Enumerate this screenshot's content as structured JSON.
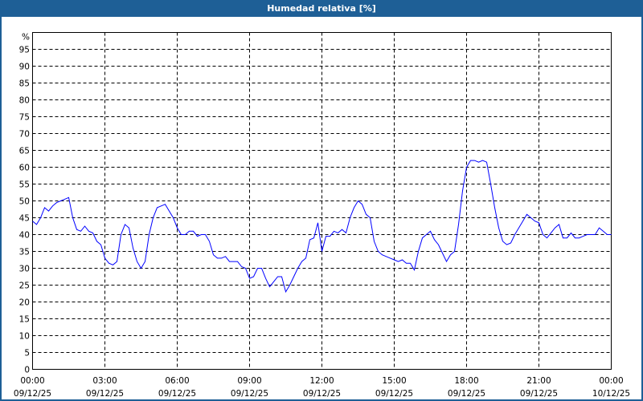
{
  "window": {
    "title": "Humedad relativa [%]"
  },
  "colors": {
    "header": "#1e5f96",
    "line": "#0000ff",
    "grid": "#000000",
    "background": "#ffffff"
  },
  "chart_data": {
    "type": "line",
    "title": "Humedad relativa [%]",
    "ylabel": "%",
    "ylim": [
      0,
      100
    ],
    "xlim": [
      "09/12/25 00:00",
      "10/12/25 00:00"
    ],
    "grid": true,
    "grid_style": "dashed",
    "y_ticks": [
      "0",
      "5",
      "10",
      "15",
      "20",
      "25",
      "30",
      "35",
      "40",
      "45",
      "50",
      "55",
      "60",
      "65",
      "70",
      "75",
      "80",
      "85",
      "90",
      "95"
    ],
    "x_ticks": [
      {
        "time": "00:00",
        "date": "09/12/25"
      },
      {
        "time": "03:00",
        "date": "09/12/25"
      },
      {
        "time": "06:00",
        "date": "09/12/25"
      },
      {
        "time": "09:00",
        "date": "09/12/25"
      },
      {
        "time": "12:00",
        "date": "09/12/25"
      },
      {
        "time": "15:00",
        "date": "09/12/25"
      },
      {
        "time": "18:00",
        "date": "09/12/25"
      },
      {
        "time": "21:00",
        "date": "09/12/25"
      },
      {
        "time": "00:00",
        "date": "10/12/25"
      }
    ],
    "x": [
      "00:00",
      "00:10",
      "00:20",
      "00:30",
      "00:40",
      "00:50",
      "01:00",
      "01:10",
      "01:20",
      "01:30",
      "01:40",
      "01:50",
      "02:00",
      "02:10",
      "02:20",
      "02:30",
      "02:40",
      "02:50",
      "03:00",
      "03:10",
      "03:20",
      "03:30",
      "03:40",
      "03:50",
      "04:00",
      "04:10",
      "04:20",
      "04:30",
      "04:40",
      "04:50",
      "05:00",
      "05:10",
      "05:20",
      "05:30",
      "05:40",
      "05:50",
      "06:00",
      "06:10",
      "06:20",
      "06:30",
      "06:40",
      "06:50",
      "07:00",
      "07:10",
      "07:20",
      "07:30",
      "07:40",
      "07:50",
      "08:00",
      "08:10",
      "08:20",
      "08:30",
      "08:40",
      "08:50",
      "09:00",
      "09:10",
      "09:20",
      "09:30",
      "09:40",
      "09:50",
      "10:00",
      "10:10",
      "10:20",
      "10:30",
      "10:40",
      "10:50",
      "11:00",
      "11:10",
      "11:20",
      "11:30",
      "11:40",
      "11:50",
      "12:00",
      "12:10",
      "12:20",
      "12:30",
      "12:40",
      "12:50",
      "13:00",
      "13:10",
      "13:20",
      "13:30",
      "13:40",
      "13:50",
      "14:00",
      "14:10",
      "14:20",
      "14:30",
      "14:40",
      "14:50",
      "15:00",
      "15:10",
      "15:20",
      "15:30",
      "15:40",
      "15:50",
      "16:00",
      "16:10",
      "16:20",
      "16:30",
      "16:40",
      "16:50",
      "17:00",
      "17:10",
      "17:20",
      "17:30",
      "17:40",
      "17:50",
      "18:00",
      "18:10",
      "18:20",
      "18:30",
      "18:40",
      "18:50",
      "19:00",
      "19:10",
      "19:20",
      "19:30",
      "19:40",
      "19:50",
      "20:00",
      "20:10",
      "20:20",
      "20:30",
      "20:40",
      "20:50",
      "21:00",
      "21:10",
      "21:20",
      "21:30",
      "21:40",
      "21:50",
      "22:00",
      "22:10",
      "22:20",
      "22:30",
      "22:40",
      "22:50",
      "23:00",
      "23:10",
      "23:20",
      "23:30",
      "23:40",
      "23:50",
      "24:00"
    ],
    "series": [
      {
        "values": [
          44,
          43,
          45,
          48,
          47,
          48.5,
          49.5,
          50,
          50.5,
          51,
          45,
          41.5,
          41,
          42.5,
          41,
          40.5,
          38,
          37,
          33,
          31.5,
          31,
          32,
          40,
          43,
          42,
          36,
          32,
          30,
          32,
          40,
          45,
          48,
          48.5,
          49,
          47,
          45,
          42,
          40,
          40,
          41,
          41,
          39.5,
          40,
          40,
          38,
          34,
          33,
          33,
          33.5,
          32,
          32,
          32,
          30.5,
          30,
          27,
          27.5,
          30,
          30,
          27,
          24.5,
          26,
          27.5,
          27.5,
          23,
          25,
          27.5,
          30,
          32,
          33,
          38.5,
          39,
          43.5,
          35,
          39.5,
          39.5,
          41,
          40.5,
          41.5,
          40.5,
          45,
          48,
          50,
          49,
          46,
          45,
          38,
          35,
          34,
          33.5,
          33,
          32.5,
          32,
          32.5,
          31.5,
          31.5,
          29.5,
          35,
          39,
          40,
          41,
          38.5,
          37,
          34.5,
          32,
          34,
          35,
          43,
          53,
          60,
          62,
          62,
          61.5,
          62,
          61.5,
          55,
          48,
          42,
          38,
          37,
          37.5,
          40,
          42,
          44,
          46,
          45,
          44,
          43.5,
          40,
          39,
          40.5,
          42,
          43,
          39,
          39,
          40.5,
          39,
          39,
          39.5,
          40,
          40,
          40,
          42,
          41,
          40,
          40
        ]
      }
    ]
  }
}
